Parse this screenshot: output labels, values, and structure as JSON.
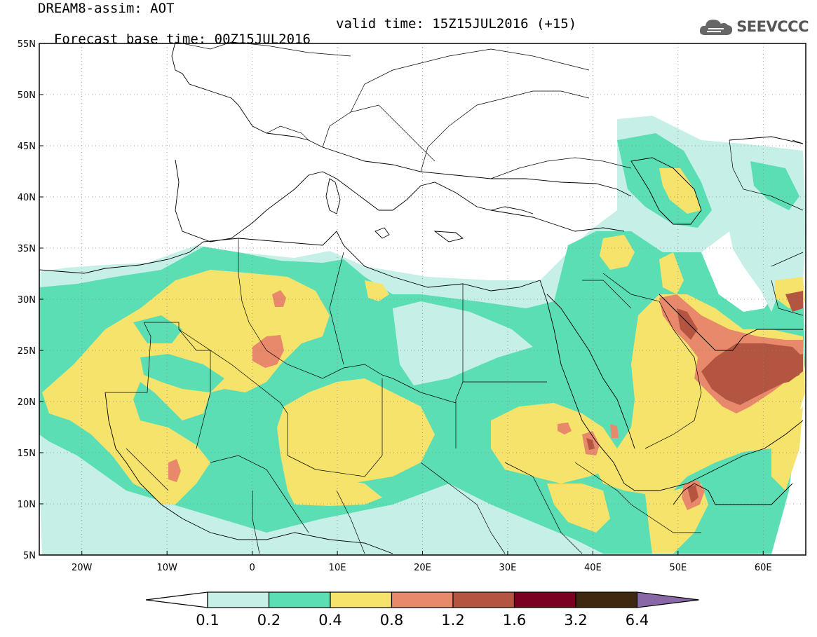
{
  "title": {
    "model_line": "DREAM8-assim: AOT",
    "base_time": "Forecast base time: 00Z15JUL2016",
    "valid_time": "valid time: 15Z15JUL2016 (+15)"
  },
  "logo": {
    "text": "SEEVCCC",
    "icon": "cloud-icon"
  },
  "map": {
    "projection": "lat-lon",
    "lon_range": [
      -25,
      65
    ],
    "lat_range": [
      5,
      55
    ],
    "gridlines": true,
    "lat_ticks": [
      "55N",
      "50N",
      "45N",
      "40N",
      "35N",
      "30N",
      "25N",
      "20N",
      "15N",
      "10N",
      "5N"
    ],
    "lat_values": [
      55,
      50,
      45,
      40,
      35,
      30,
      25,
      20,
      15,
      10,
      5
    ],
    "lon_ticks": [
      "20W",
      "10W",
      "0",
      "10E",
      "20E",
      "30E",
      "40E",
      "50E",
      "60E"
    ],
    "lon_values": [
      -20,
      -10,
      0,
      10,
      20,
      30,
      40,
      50,
      60
    ],
    "variable": "AOT",
    "field_colors": [
      "#c6efe8",
      "#5cdeb4",
      "#f5e36c",
      "#e7896a",
      "#b35540",
      "#7a0020",
      "#3e2810",
      "#8a68a8"
    ]
  },
  "colorbar": {
    "levels": [
      "0.1",
      "0.2",
      "0.4",
      "0.8",
      "1.2",
      "1.6",
      "3.2",
      "6.4"
    ],
    "colors": [
      "#c6efe8",
      "#5cdeb4",
      "#f5e36c",
      "#e7896a",
      "#b35540",
      "#7a0020",
      "#3e2810"
    ],
    "under_color": "#ffffff",
    "over_color": "#8a68a8"
  }
}
